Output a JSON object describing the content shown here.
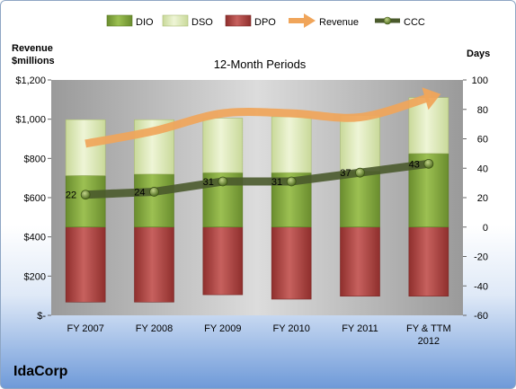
{
  "company": "IdaCorp",
  "chart_data": {
    "type": "bar",
    "title": "12-Month Periods",
    "categories": [
      "FY 2007",
      "FY 2008",
      "FY 2009",
      "FY 2010",
      "FY 2011",
      "FY & TTM 2012"
    ],
    "legend": [
      "DIO",
      "DSO",
      "DPO",
      "Revenue",
      "CCC"
    ],
    "legend_position": "top",
    "y_left": {
      "label_lines": [
        "Revenue",
        "$millions"
      ],
      "min": 0,
      "max": 1200,
      "ticks": [
        0,
        200,
        400,
        600,
        800,
        1000,
        1200
      ],
      "tick_labels": [
        "$-",
        "$200",
        "$400",
        "$600",
        "$800",
        "$1,000",
        "$1,200"
      ]
    },
    "y_right": {
      "label": "Days",
      "min": -60,
      "max": 100,
      "ticks": [
        -60,
        -40,
        -20,
        0,
        20,
        40,
        60,
        80,
        100
      ],
      "tick_labels": [
        "-60",
        "-40",
        "-20",
        "0",
        "20",
        "40",
        "60",
        "80",
        "100"
      ]
    },
    "series": [
      {
        "name": "DPO",
        "axis": "right",
        "kind": "stacked-bar",
        "values": [
          -51,
          -51,
          -46,
          -49,
          -47,
          -47
        ],
        "color": "#b94f4c"
      },
      {
        "name": "DIO",
        "axis": "right",
        "kind": "stacked-bar",
        "values": [
          35,
          36,
          37,
          37,
          38,
          50
        ],
        "color": "#8db04b"
      },
      {
        "name": "DSO",
        "axis": "right",
        "kind": "stacked-bar",
        "values": [
          38,
          37,
          37,
          38,
          38,
          38
        ],
        "color": "#dbe8b4"
      },
      {
        "name": "Revenue",
        "axis": "left",
        "kind": "arrow-line",
        "values": [
          875,
          940,
          1030,
          1030,
          1010,
          1110
        ],
        "color": "#f0a55a"
      },
      {
        "name": "CCC",
        "axis": "right",
        "kind": "line",
        "values": [
          22,
          24,
          31,
          31,
          37,
          43
        ],
        "labels": [
          "22",
          "24",
          "31",
          "31",
          "37",
          "43"
        ],
        "color": "#4a5a2c"
      }
    ],
    "grid": false
  }
}
